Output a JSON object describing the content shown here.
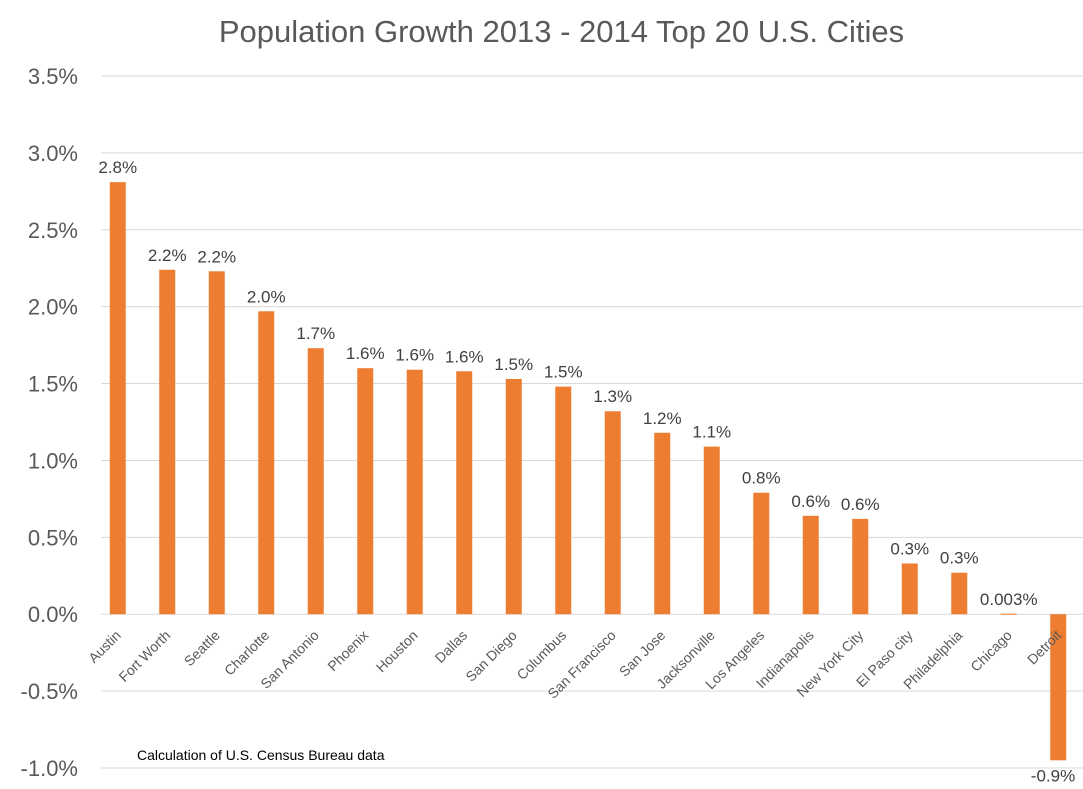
{
  "chart_data": {
    "type": "bar",
    "title": "Population Growth 2013 - 2014 Top 20 U.S. Cities",
    "xlabel": "",
    "ylabel": "",
    "ylim": [
      -1.0,
      3.5
    ],
    "ytick_step": 0.5,
    "yticks": [
      "3.5%",
      "3.0%",
      "2.5%",
      "2.0%",
      "1.5%",
      "1.0%",
      "0.5%",
      "0.0%",
      "-0.5%",
      "-1.0%"
    ],
    "grid": true,
    "legend": "none",
    "bar_color": "#ED7D31",
    "categories": [
      "Austin",
      "Fort Worth",
      "Seattle",
      "Charlotte",
      "San Antonio",
      "Phoenix",
      "Houston",
      "Dallas",
      "San Diego",
      "Columbus",
      "San Francisco",
      "San Jose",
      "Jacksonville",
      "Los Angeles",
      "Indianapolis",
      "New York City",
      "El Paso city",
      "Philadelphia",
      "Chicago",
      "Detroit"
    ],
    "values": [
      2.81,
      2.24,
      2.23,
      1.97,
      1.73,
      1.6,
      1.59,
      1.58,
      1.53,
      1.48,
      1.32,
      1.18,
      1.09,
      0.79,
      0.64,
      0.62,
      0.33,
      0.27,
      0.003,
      -0.95
    ],
    "data_labels": [
      "2.8%",
      "2.2%",
      "2.2%",
      "2.0%",
      "1.7%",
      "1.6%",
      "1.6%",
      "1.6%",
      "1.5%",
      "1.5%",
      "1.3%",
      "1.2%",
      "1.1%",
      "0.8%",
      "0.6%",
      "0.6%",
      "0.3%",
      "0.3%",
      "0.003%",
      "-0.9%"
    ],
    "annotation": "Calculation of U.S. Census Bureau data"
  }
}
